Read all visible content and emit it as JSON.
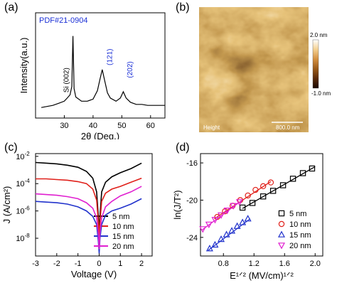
{
  "panel_labels": {
    "a": "(a)",
    "b": "(b)",
    "c": "(c)",
    "d": "(d)"
  },
  "colors": {
    "axis": "#000000",
    "annotation_blue": "#1a2fd6"
  },
  "chart_data": [
    {
      "id": "a",
      "type": "line",
      "xlabel": "2θ (Deg.)",
      "ylabel": "Intensity(a.u.)",
      "xlim": [
        20,
        65
      ],
      "xticks": [
        "30",
        "40",
        "50",
        "60"
      ],
      "xtick_values": [
        30,
        40,
        50,
        60
      ],
      "annotations": [
        "PDF#21-0904",
        "Si (002)",
        "(121)",
        "(202)"
      ],
      "series": [
        {
          "color": "#000000",
          "x": [
            22,
            24,
            26,
            28,
            30,
            31,
            32,
            32.6,
            33.0,
            33.4,
            34,
            36,
            38,
            40,
            41.5,
            42.5,
            43.2,
            44,
            45,
            46,
            48,
            49.5,
            50.5,
            51.5,
            53,
            55,
            57,
            59,
            61,
            63,
            65
          ],
          "y": [
            0.1,
            0.11,
            0.12,
            0.14,
            0.16,
            0.19,
            0.22,
            0.3,
            0.78,
            0.28,
            0.2,
            0.16,
            0.16,
            0.18,
            0.26,
            0.38,
            0.46,
            0.36,
            0.24,
            0.19,
            0.16,
            0.19,
            0.25,
            0.19,
            0.15,
            0.13,
            0.13,
            0.12,
            0.12,
            0.12,
            0.12
          ]
        }
      ]
    },
    {
      "id": "c",
      "type": "line",
      "xlabel": "Voltage (V)",
      "ylabel": "J (A/cm²)",
      "xlim": [
        -3,
        2.5
      ],
      "ylim_log10": [
        -9.3,
        -1.8
      ],
      "xticks": [
        "-3",
        "-2",
        "-1",
        "0",
        "1",
        "2"
      ],
      "xtick_values": [
        -3,
        -2,
        -1,
        0,
        1,
        2
      ],
      "ytick_exponents": [
        -2,
        -4,
        -6,
        -8
      ],
      "legend_position": "bottom-right",
      "series": [
        {
          "name": "5 nm",
          "color": "#000000",
          "x": [
            -3,
            -2.5,
            -2,
            -1.5,
            -1,
            -0.6,
            -0.3,
            -0.12,
            -0.04,
            0,
            0.04,
            0.12,
            0.3,
            0.6,
            1,
            1.5,
            2
          ],
          "y_log10": [
            -2.45,
            -2.5,
            -2.55,
            -2.65,
            -2.8,
            -3.1,
            -3.6,
            -4.6,
            -6.4,
            -7.4,
            -6.4,
            -4.6,
            -3.9,
            -3.5,
            -3.2,
            -2.9,
            -2.5
          ]
        },
        {
          "name": "10 nm",
          "color": "#e0201a",
          "x": [
            -3,
            -2.5,
            -2,
            -1.5,
            -1,
            -0.6,
            -0.3,
            -0.12,
            -0.04,
            0,
            0.04,
            0.12,
            0.3,
            0.6,
            1,
            1.5,
            2
          ],
          "y_log10": [
            -3.65,
            -3.65,
            -3.7,
            -3.75,
            -3.85,
            -4.0,
            -4.4,
            -5.2,
            -6.8,
            -8.2,
            -6.8,
            -5.3,
            -4.7,
            -4.4,
            -4.2,
            -3.9,
            -3.6
          ]
        },
        {
          "name": "15 nm",
          "color": "#2233cc",
          "x": [
            -3,
            -2.5,
            -2,
            -1.5,
            -1,
            -0.6,
            -0.3,
            -0.12,
            -0.04,
            0,
            0.04,
            0.12,
            0.3,
            0.6,
            1,
            1.5,
            2
          ],
          "y_log10": [
            -5.3,
            -5.35,
            -5.4,
            -5.5,
            -5.7,
            -6.0,
            -6.4,
            -7.0,
            -8.2,
            -9.1,
            -8.0,
            -7.0,
            -6.3,
            -6.0,
            -5.8,
            -5.5,
            -5.1
          ]
        },
        {
          "name": "20 nm",
          "color": "#e020d0",
          "x": [
            -3,
            -2.5,
            -2,
            -1.5,
            -1,
            -0.6,
            -0.3,
            -0.12,
            -0.04,
            0,
            0.04,
            0.12,
            0.3,
            0.6,
            1,
            1.5,
            2
          ],
          "y_log10": [
            -4.75,
            -4.8,
            -4.85,
            -4.95,
            -5.1,
            -5.4,
            -5.8,
            -6.5,
            -7.7,
            -8.8,
            -7.6,
            -6.5,
            -5.7,
            -5.3,
            -4.9,
            -4.6,
            -4.2
          ]
        }
      ]
    },
    {
      "id": "d",
      "type": "scatter",
      "xlabel": "E¹ᐟ² (MV/cm)¹ᐟ²",
      "ylabel": "ln(J/T²)",
      "xlim": [
        0.5,
        2.1
      ],
      "ylim": [
        -26,
        -15
      ],
      "xticks": [
        "0.8",
        "1.2",
        "1.6",
        "2.0"
      ],
      "xtick_values": [
        0.8,
        1.2,
        1.6,
        2.0
      ],
      "yticks": [
        "-16",
        "-20",
        "-24"
      ],
      "ytick_values": [
        -16,
        -20,
        -24
      ],
      "legend_position": "bottom-right",
      "series": [
        {
          "name": "5 nm",
          "marker": "square",
          "color": "#000000",
          "x": [
            1.05,
            1.18,
            1.32,
            1.45,
            1.58,
            1.71,
            1.84,
            1.96
          ],
          "y": [
            -20.8,
            -20.3,
            -19.6,
            -19.0,
            -18.4,
            -17.7,
            -17.1,
            -16.6
          ],
          "fit_x": [
            1.05,
            2.0
          ],
          "fit_y": [
            -20.9,
            -16.4
          ]
        },
        {
          "name": "10 nm",
          "marker": "circle",
          "color": "#e0201a",
          "x": [
            0.72,
            0.82,
            0.92,
            1.02,
            1.12,
            1.22,
            1.32,
            1.42
          ],
          "y": [
            -21.8,
            -21.2,
            -20.6,
            -20.0,
            -19.5,
            -18.9,
            -18.5,
            -18.1
          ],
          "fit_x": [
            0.68,
            1.42
          ],
          "fit_y": [
            -22.0,
            -18.0
          ]
        },
        {
          "name": "15 nm",
          "marker": "triangle-up",
          "color": "#2233cc",
          "x": [
            0.62,
            0.69,
            0.77,
            0.84,
            0.91,
            0.98,
            1.05,
            1.12
          ],
          "y": [
            -25.2,
            -24.8,
            -24.2,
            -23.7,
            -23.3,
            -22.8,
            -22.4,
            -22.0
          ],
          "fit_x": [
            0.6,
            1.15
          ],
          "fit_y": [
            -25.4,
            -22.0
          ]
        },
        {
          "name": "20 nm",
          "marker": "triangle-down",
          "color": "#e020d0",
          "x": [
            0.53,
            0.61,
            0.69,
            0.77,
            0.85,
            0.93,
            1.01
          ],
          "y": [
            -23.1,
            -22.6,
            -22.1,
            -21.6,
            -21.1,
            -20.6,
            -20.2
          ],
          "fit_x": [
            0.52,
            1.03
          ],
          "fit_y": [
            -23.2,
            -20.1
          ]
        }
      ]
    }
  ],
  "afm": {
    "label": "Height",
    "scale_text": "800.0 nm",
    "colorbar_max": "2.0 nm",
    "colorbar_min": "-1.0 nm",
    "colormap": [
      "#1a0800",
      "#5a2a08",
      "#9a5a18",
      "#d49040",
      "#f4d090",
      "#ffffff"
    ]
  }
}
